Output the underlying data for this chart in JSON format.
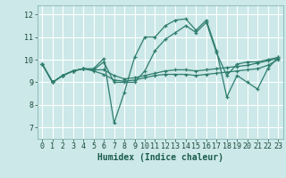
{
  "xlabel": "Humidex (Indice chaleur)",
  "bg_color": "#cce8e8",
  "grid_color": "#ffffff",
  "line_color": "#2e7d6e",
  "xlim": [
    -0.5,
    23.5
  ],
  "ylim": [
    6.5,
    12.4
  ],
  "yticks": [
    7,
    8,
    9,
    10,
    11,
    12
  ],
  "xticks": [
    0,
    1,
    2,
    3,
    4,
    5,
    6,
    7,
    8,
    9,
    10,
    11,
    12,
    13,
    14,
    15,
    16,
    17,
    18,
    19,
    20,
    21,
    22,
    23
  ],
  "lines": [
    [
      9.8,
      9.0,
      9.3,
      9.5,
      9.6,
      9.6,
      10.05,
      7.2,
      8.55,
      10.1,
      11.0,
      11.0,
      11.5,
      11.75,
      11.8,
      11.3,
      11.75,
      10.4,
      8.35,
      9.3,
      9.0,
      8.7,
      9.6,
      10.1
    ],
    [
      9.8,
      9.0,
      9.3,
      9.5,
      9.6,
      9.55,
      9.55,
      9.3,
      9.15,
      9.2,
      9.3,
      9.4,
      9.5,
      9.55,
      9.55,
      9.5,
      9.55,
      9.6,
      9.65,
      9.7,
      9.75,
      9.85,
      9.95,
      10.05
    ],
    [
      9.8,
      9.0,
      9.3,
      9.5,
      9.6,
      9.55,
      9.9,
      9.0,
      9.0,
      9.0,
      9.5,
      10.4,
      10.9,
      11.2,
      11.5,
      11.2,
      11.65,
      10.3,
      9.3,
      9.8,
      9.9,
      9.9,
      10.0,
      10.1
    ],
    [
      9.8,
      9.0,
      9.3,
      9.5,
      9.6,
      9.5,
      9.35,
      9.1,
      9.05,
      9.1,
      9.2,
      9.3,
      9.35,
      9.35,
      9.35,
      9.3,
      9.35,
      9.4,
      9.45,
      9.5,
      9.55,
      9.6,
      9.75,
      10.0
    ]
  ]
}
